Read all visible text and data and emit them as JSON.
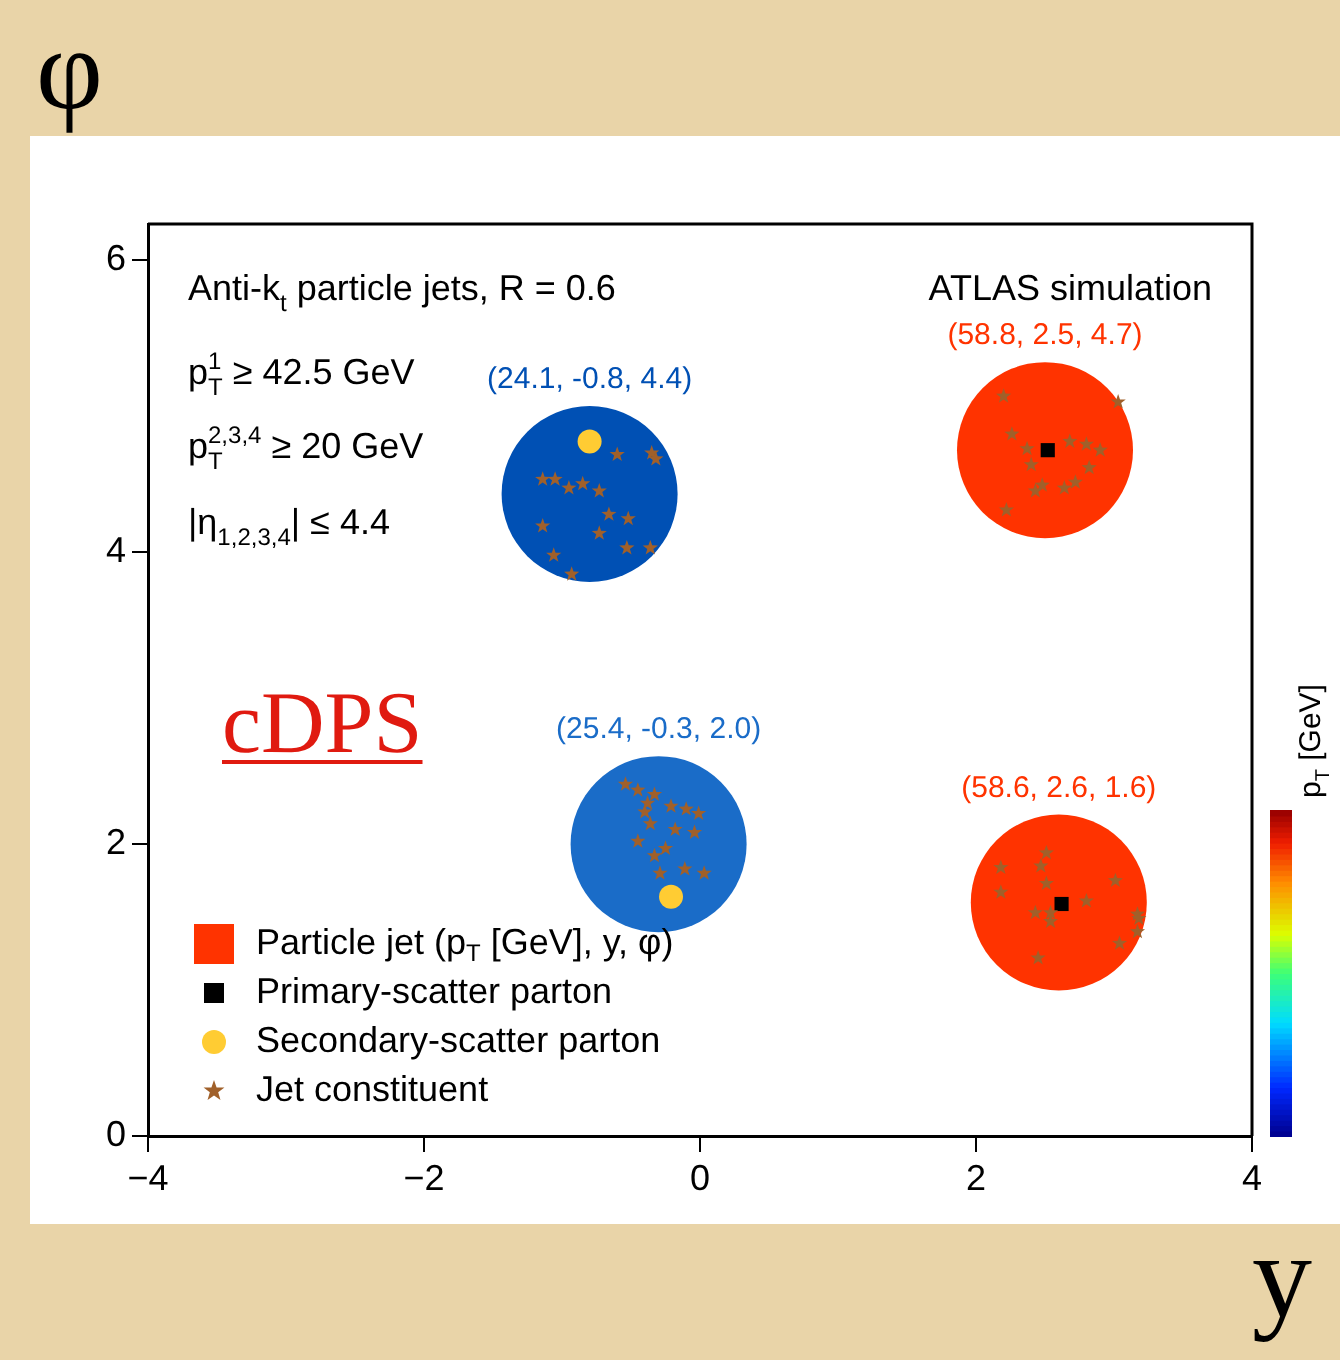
{
  "chart_data": {
    "type": "scatter",
    "xlabel": "y",
    "ylabel": "φ",
    "clabel": "p$_{T}$ [GeV]",
    "xlim": [
      -4,
      4
    ],
    "xticks": [
      {
        "value": -4,
        "label": "−4"
      },
      {
        "value": -2,
        "label": "−2"
      },
      0,
      2,
      4
    ],
    "ylim": [
      0,
      6.25
    ],
    "yticks": [
      0,
      2,
      4,
      6
    ],
    "legend": "bottom left",
    "annotations": [
      "Anti-k$_{t}$ particle jets, R = 0.6",
      "p$_{T}$$^{1}$ ≥ 42.5 GeV",
      "p$_{T}$$^{2,3,4}$ ≥ 20 GeV",
      "|η$_{1,2,3,4}$| ≤ 4.4",
      "ATLAS simulation",
      "cDPS"
    ],
    "series": [
      {
        "type": "bubble",
        "name": "Particle jet (p$_{T}$ [GeV], y, φ)",
        "x": [
          -0.8,
          -0.3,
          2.5,
          2.6
        ],
        "values": [
          4.4,
          2.0,
          4.7,
          1.6
        ],
        "sizes": [
          1,
          1,
          1,
          1
        ],
        "colors": [
          "#0050b4",
          "#1a6cc8",
          "#ff3300",
          "#ff3300"
        ],
        "value_labels": [
          "(24.1, -0.8, 4.4)",
          "(25.4, -0.3, 2.0)",
          "(58.8, 2.5, 4.7)",
          "(58.6, 2.6, 1.6)"
        ]
      },
      {
        "name": "Primary-scatter parton",
        "color": "#000000",
        "marker": "square",
        "x": [
          2.52,
          2.62
        ],
        "values": [
          4.7,
          1.59
        ]
      },
      {
        "name": "Secondary-scatter parton",
        "color": "#ffcc33",
        "marker": "circle",
        "x": [
          -0.8,
          -0.21
        ],
        "values": [
          4.76,
          1.64
        ]
      },
      {
        "name": "Jet constituent",
        "color": "#a0602a",
        "marker": "star",
        "x": [
          -0.6,
          -0.35,
          -0.32,
          -1.14,
          -1.05,
          -0.95,
          -0.85,
          -0.73,
          -0.66,
          -0.52,
          -1.14,
          -0.73,
          -0.53,
          -0.36,
          -1.06,
          -0.93,
          -0.54,
          -0.45,
          -0.33,
          -0.38,
          -0.21,
          -0.1,
          -0.01,
          -0.4,
          -0.36,
          -0.18,
          -0.04,
          -0.45,
          -0.25,
          -0.33,
          -0.29,
          -0.11,
          0.03,
          2.2,
          3.03,
          2.26,
          2.68,
          2.8,
          2.9,
          2.37,
          2.4,
          2.82,
          2.72,
          2.48,
          2.64,
          2.43,
          2.22,
          2.51,
          2.47,
          2.18,
          2.51,
          3.01,
          2.18,
          2.8,
          2.43,
          2.54,
          2.54,
          3.17,
          3.18,
          3.17,
          3.04,
          2.45
        ],
        "values": [
          4.67,
          4.68,
          4.64,
          4.5,
          4.5,
          4.44,
          4.47,
          4.42,
          4.26,
          4.23,
          4.18,
          4.13,
          4.03,
          4.03,
          3.98,
          3.85,
          2.41,
          2.37,
          2.34,
          2.28,
          2.26,
          2.24,
          2.21,
          2.22,
          2.14,
          2.1,
          2.08,
          2.02,
          1.97,
          1.92,
          1.8,
          1.83,
          1.8,
          5.07,
          5.03,
          4.81,
          4.76,
          4.74,
          4.7,
          4.71,
          4.6,
          4.58,
          4.48,
          4.46,
          4.44,
          4.42,
          4.29,
          1.94,
          1.85,
          1.84,
          1.73,
          1.75,
          1.67,
          1.61,
          1.53,
          1.53,
          1.47,
          1.52,
          1.49,
          1.4,
          1.32,
          1.22
        ]
      }
    ]
  }
}
